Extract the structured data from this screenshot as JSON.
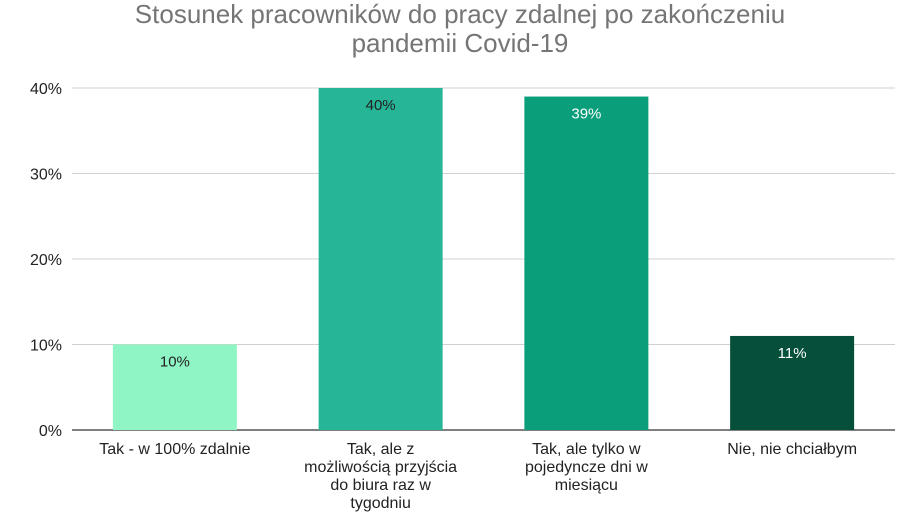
{
  "chart_data": {
    "type": "bar",
    "title_lines": [
      "Stosunek pracowników do pracy zdalnej po zakończeniu",
      "pandemii Covid-19"
    ],
    "categories": [
      [
        "Tak - w 100% zdalnie"
      ],
      [
        "Tak, ale z",
        "możliwością przyjścia",
        "do biura raz w",
        "tygodniu"
      ],
      [
        "Tak, ale tylko w",
        "pojedyncze dni w",
        "miesiącu"
      ],
      [
        "Nie, nie chciałbym"
      ]
    ],
    "values": [
      10,
      40,
      39,
      11
    ],
    "data_labels": [
      "10%",
      "40%",
      "39%",
      "11%"
    ],
    "colors": [
      "#8ff5c5",
      "#26b596",
      "#0b9e7b",
      "#064f3a"
    ],
    "label_colors": [
      "#222222",
      "#222222",
      "#ffffff",
      "#ffffff"
    ],
    "yticks": [
      "0%",
      "10%",
      "20%",
      "30%",
      "40%"
    ],
    "ylim": [
      0,
      40
    ],
    "grid": true,
    "xlabel": "",
    "ylabel": ""
  }
}
